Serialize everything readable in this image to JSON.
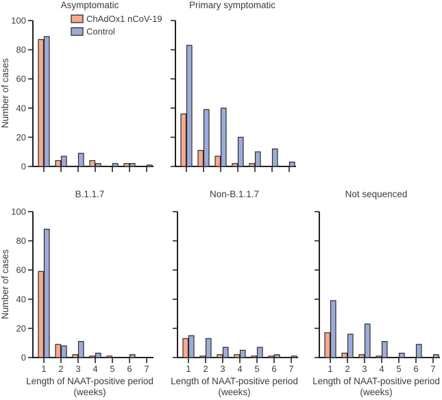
{
  "figure": {
    "ylabel": "Number of cases",
    "xlabel_line1": "Length of NAAT-positive period",
    "xlabel_line2": "(weeks)",
    "legend": [
      {
        "label": "ChAdOx1 nCoV-19",
        "color": "#f6aa8e"
      },
      {
        "label": "Control",
        "color": "#9dabd8"
      }
    ],
    "colors": {
      "bar_stroke": "#2b2b2b",
      "axis": "#231f20",
      "text": "#3b3b3b"
    }
  },
  "chart_data": [
    {
      "type": "bar",
      "title": "Asymptomatic",
      "row": 1,
      "col": 1,
      "legend": true,
      "show_y_tick_labels": true,
      "show_x_tick_labels": false,
      "categories": [
        "1",
        "2",
        "3",
        "4",
        "5",
        "6",
        "7"
      ],
      "series": [
        {
          "name": "ChAdOx1 nCoV-19",
          "values": [
            87,
            4,
            0,
            4,
            0,
            2,
            0
          ]
        },
        {
          "name": "Control",
          "values": [
            89,
            7,
            9,
            2,
            2,
            2,
            1
          ]
        }
      ],
      "xlabel": "Length of NAAT-positive period (weeks)",
      "ylabel": "Number of cases",
      "ylim": [
        0,
        100
      ],
      "yticks": [
        0,
        20,
        40,
        60,
        80,
        100
      ]
    },
    {
      "type": "bar",
      "title": "Primary symptomatic",
      "row": 1,
      "col": 2,
      "legend": false,
      "show_y_tick_labels": false,
      "show_x_tick_labels": false,
      "categories": [
        "1",
        "2",
        "3",
        "4",
        "5",
        "6",
        "7"
      ],
      "series": [
        {
          "name": "ChAdOx1 nCoV-19",
          "values": [
            36,
            11,
            7,
            2,
            2,
            0,
            0
          ]
        },
        {
          "name": "Control",
          "values": [
            83,
            39,
            40,
            20,
            10,
            12,
            3
          ]
        }
      ],
      "xlabel": "Length of NAAT-positive period (weeks)",
      "ylabel": "Number of cases",
      "ylim": [
        0,
        100
      ],
      "yticks": [
        0,
        20,
        40,
        60,
        80,
        100
      ]
    },
    {
      "type": "bar",
      "title": "B.1.1.7",
      "row": 2,
      "col": 1,
      "legend": false,
      "show_y_tick_labels": true,
      "show_x_tick_labels": true,
      "categories": [
        "1",
        "2",
        "3",
        "4",
        "5",
        "6",
        "7"
      ],
      "series": [
        {
          "name": "ChAdOx1 nCoV-19",
          "values": [
            59,
            9,
            2,
            1,
            1,
            0,
            0
          ]
        },
        {
          "name": "Control",
          "values": [
            88,
            8,
            11,
            3,
            0,
            2,
            0
          ]
        }
      ],
      "xlabel": "Length of NAAT-positive period (weeks)",
      "ylabel": "Number of cases",
      "ylim": [
        0,
        100
      ],
      "yticks": [
        0,
        20,
        40,
        60,
        80,
        100
      ]
    },
    {
      "type": "bar",
      "title": "Non-B.1.1.7",
      "row": 2,
      "col": 2,
      "legend": false,
      "show_y_tick_labels": false,
      "show_x_tick_labels": true,
      "categories": [
        "1",
        "2",
        "3",
        "4",
        "5",
        "6",
        "7"
      ],
      "series": [
        {
          "name": "ChAdOx1 nCoV-19",
          "values": [
            13,
            1,
            2,
            2,
            1,
            1,
            0
          ]
        },
        {
          "name": "Control",
          "values": [
            15,
            13,
            7,
            5,
            7,
            2,
            1
          ]
        }
      ],
      "xlabel": "Length of NAAT-positive period (weeks)",
      "ylabel": "Number of cases",
      "ylim": [
        0,
        100
      ],
      "yticks": [
        0,
        20,
        40,
        60,
        80,
        100
      ]
    },
    {
      "type": "bar",
      "title": "Not sequenced",
      "row": 2,
      "col": 3,
      "legend": false,
      "show_y_tick_labels": false,
      "show_x_tick_labels": true,
      "categories": [
        "1",
        "2",
        "3",
        "4",
        "5",
        "6",
        "7"
      ],
      "series": [
        {
          "name": "ChAdOx1 nCoV-19",
          "values": [
            17,
            3,
            2,
            1,
            0,
            0,
            0
          ]
        },
        {
          "name": "Control",
          "values": [
            39,
            16,
            23,
            11,
            3,
            9,
            2
          ]
        }
      ],
      "xlabel": "Length of NAAT-positive period (weeks)",
      "ylabel": "Number of cases",
      "ylim": [
        0,
        100
      ],
      "yticks": [
        0,
        20,
        40,
        60,
        80,
        100
      ]
    }
  ]
}
